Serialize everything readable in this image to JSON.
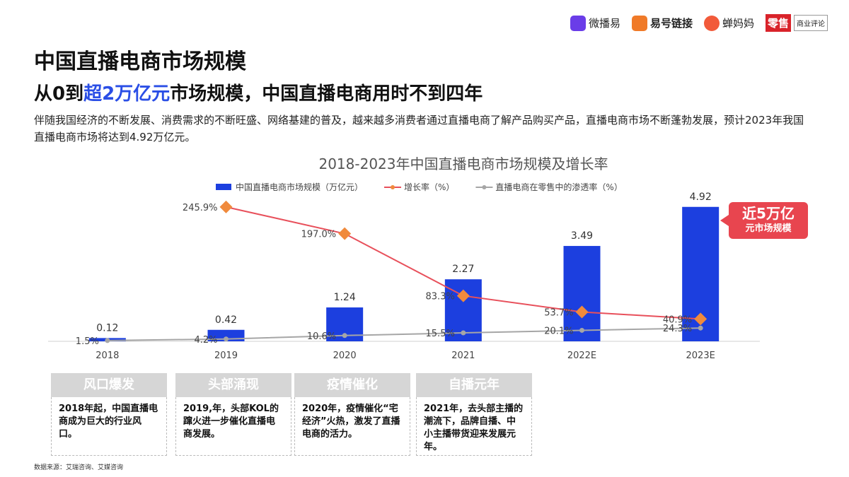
{
  "logos": [
    "微播易",
    "易号链接",
    "蝉妈妈",
    "零售",
    "商业评论"
  ],
  "header": {
    "title": "中国直播电商市场规模",
    "subtitle": [
      "从0到",
      "超2万亿元",
      "市场规模，中国直播电商用时不到四年"
    ],
    "description": "伴随我国经济的不断发展、消费需求的不断旺盛、网络基建的普及，越来越多消费者通过直播电商了解产品购买产品，直播电商市场不断蓬勃发展，预计2023年我国直播电商市场将达到4.92万亿元。"
  },
  "chart_data": {
    "type": "bar-line",
    "title": "2018-2023年中国直播电商市场规模及增长率",
    "categories": [
      "2018",
      "2019",
      "2020",
      "2021",
      "2022E",
      "2023E"
    ],
    "ylim": [
      0,
      6
    ],
    "y2lim": [
      0,
      300
    ],
    "series": [
      {
        "name": "中国直播电商市场规模（万亿元）",
        "type": "bar",
        "color": "#1c3fdf",
        "values": [
          0.12,
          0.42,
          1.24,
          2.27,
          3.49,
          4.92
        ]
      },
      {
        "name": "增长率（%）",
        "type": "line",
        "axis": "y2",
        "color": "#e8505b",
        "marker_color": "#f08a3c",
        "values": [
          null,
          245.9,
          197.0,
          83.3,
          53.7,
          40.9
        ],
        "value_labels": [
          null,
          "245.9%",
          "197.0%",
          "83.3%",
          "53.7%",
          "40.9%"
        ]
      },
      {
        "name": "直播电商在零售中的渗透率（%）",
        "type": "line",
        "axis": "y2",
        "color": "#a6a6a6",
        "values": [
          1.5,
          4.2,
          10.6,
          15.5,
          20.1,
          24.3
        ],
        "value_labels": [
          "1.5%",
          "4.2%",
          "10.6%",
          "15.5%",
          "20.1%",
          "24.3%"
        ]
      }
    ]
  },
  "callout": [
    "近5万亿",
    "元市场规模"
  ],
  "cards": [
    {
      "title": "风口爆发",
      "text": "2018年起，中国直播电商成为巨大的行业风口。"
    },
    {
      "title": "头部涌现",
      "text": "2019,年，头部KOL的蹿火进一步催化直播电商发展。"
    },
    {
      "title": "疫情催化",
      "text": "2020年，疫情催化“宅经济”火热，激发了直播电商的活力。"
    },
    {
      "title": "自播元年",
      "text": "2021年，去头部主播的潮流下，品牌自播、中小主播带货迎来发展元年。"
    }
  ],
  "source": "数据来源：艾瑞咨询、艾媒咨询"
}
